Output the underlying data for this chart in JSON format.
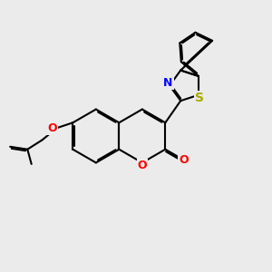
{
  "bg_color": "#ebebeb",
  "bond_color": "#000000",
  "bond_width": 1.5,
  "dbo": 0.05,
  "atom_colors": {
    "O": "#ff0000",
    "N": "#0000ff",
    "S": "#aaaa00",
    "C": "#000000"
  },
  "font_size": 9,
  "fig_size": [
    3.0,
    3.0
  ],
  "dpi": 100
}
